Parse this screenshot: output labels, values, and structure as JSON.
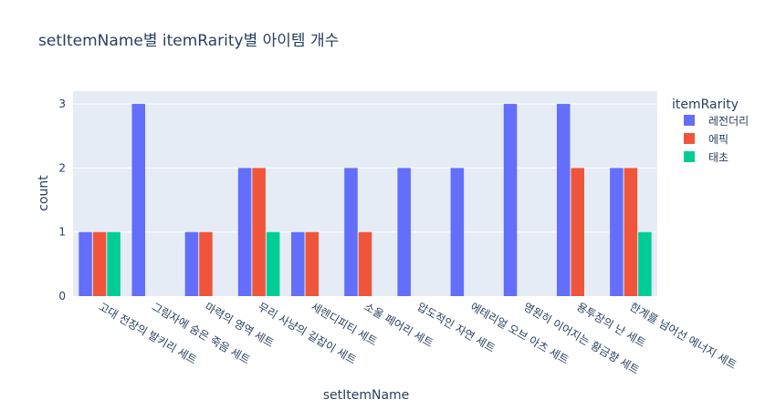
{
  "chart_data": {
    "type": "bar",
    "title": "setItemName별 itemRarity별 아이템 개수",
    "xlabel": "setItemName",
    "ylabel": "count",
    "ylim": [
      0,
      3.2
    ],
    "yticks": [
      0,
      1,
      2,
      3
    ],
    "grid": true,
    "legend_title": "itemRarity",
    "legend_position": "top-right",
    "categories": [
      "고대 전장의 발키리 세트",
      "그림자에 숨은 죽음 세트",
      "마력의 영역 세트",
      "무리 사냥의 길잡이 세트",
      "세렌디피티 세트",
      "소울 페어리 세트",
      "압도적인 자연 세트",
      "에테리얼 오브 아츠 세트",
      "영원히 이어지는 황금향 세트",
      "용투장의 난 세트",
      "한계를 넘어선 에너지 세트"
    ],
    "series": [
      {
        "name": "레전더리",
        "color": "#636efa",
        "values": [
          1,
          3,
          1,
          2,
          1,
          2,
          2,
          2,
          3,
          3,
          2
        ]
      },
      {
        "name": "에픽",
        "color": "#ef553b",
        "values": [
          1,
          null,
          1,
          2,
          1,
          1,
          null,
          null,
          null,
          2,
          2
        ]
      },
      {
        "name": "태초",
        "color": "#00cc96",
        "values": [
          1,
          null,
          null,
          1,
          null,
          null,
          null,
          null,
          null,
          null,
          1
        ]
      }
    ]
  }
}
